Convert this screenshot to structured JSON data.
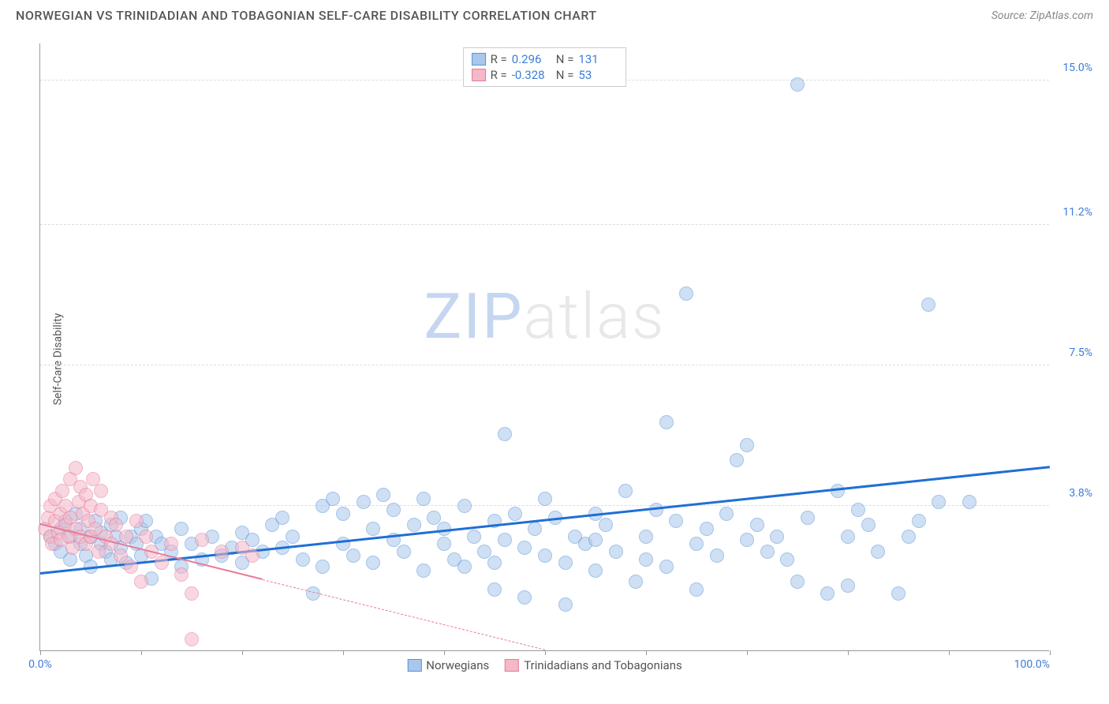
{
  "header": {
    "title": "NORWEGIAN VS TRINIDADIAN AND TOBAGONIAN SELF-CARE DISABILITY CORRELATION CHART",
    "source_prefix": "Source: ",
    "source": "ZipAtlas.com"
  },
  "chart": {
    "type": "scatter",
    "ylabel": "Self-Care Disability",
    "watermark_zip": "ZIP",
    "watermark_atlas": "atlas",
    "background_color": "#ffffff",
    "grid_color": "#dddddd",
    "axis_color": "#999999",
    "xlim": [
      0,
      100
    ],
    "ylim": [
      0,
      16
    ],
    "xticks": [
      0,
      10,
      20,
      30,
      40,
      50,
      60,
      70,
      80,
      90,
      100
    ],
    "xtick_labels": {
      "0": "0.0%",
      "100": "100.0%"
    },
    "yticks": [
      3.8,
      7.5,
      11.2,
      15.0
    ],
    "ytick_labels": [
      "3.8%",
      "7.5%",
      "11.2%",
      "15.0%"
    ],
    "series": [
      {
        "id": "norwegians",
        "name": "Norwegians",
        "fill_color": "#a9c7ec",
        "stroke_color": "#5b93d6",
        "trend_color": "#1f6fd4",
        "trend_width": 3,
        "trend_dash": "solid",
        "R": "0.296",
        "N": "131",
        "marker_radius": 9,
        "fill_opacity": 0.55,
        "trend": {
          "x1": 0,
          "y1": 2.0,
          "x2": 100,
          "y2": 4.8
        },
        "points": [
          [
            1,
            3.0
          ],
          [
            1.5,
            2.8
          ],
          [
            2,
            3.2
          ],
          [
            2,
            2.6
          ],
          [
            2.5,
            3.4
          ],
          [
            3,
            3.0
          ],
          [
            3,
            2.4
          ],
          [
            3.5,
            3.6
          ],
          [
            4,
            2.8
          ],
          [
            4,
            3.2
          ],
          [
            4.5,
            2.5
          ],
          [
            5,
            3.0
          ],
          [
            5,
            2.2
          ],
          [
            5.5,
            3.4
          ],
          [
            6,
            2.8
          ],
          [
            6,
            3.1
          ],
          [
            6.5,
            2.6
          ],
          [
            7,
            3.3
          ],
          [
            7,
            2.4
          ],
          [
            7.5,
            3.0
          ],
          [
            8,
            2.7
          ],
          [
            8,
            3.5
          ],
          [
            8.5,
            2.3
          ],
          [
            9,
            3.0
          ],
          [
            9.5,
            2.8
          ],
          [
            10,
            3.2
          ],
          [
            10,
            2.5
          ],
          [
            10.5,
            3.4
          ],
          [
            11,
            1.9
          ],
          [
            11.5,
            3.0
          ],
          [
            12,
            2.8
          ],
          [
            13,
            2.6
          ],
          [
            14,
            3.2
          ],
          [
            14,
            2.2
          ],
          [
            15,
            2.8
          ],
          [
            16,
            2.4
          ],
          [
            17,
            3.0
          ],
          [
            18,
            2.5
          ],
          [
            19,
            2.7
          ],
          [
            20,
            3.1
          ],
          [
            20,
            2.3
          ],
          [
            21,
            2.9
          ],
          [
            22,
            2.6
          ],
          [
            23,
            3.3
          ],
          [
            24,
            2.7
          ],
          [
            25,
            3.0
          ],
          [
            26,
            2.4
          ],
          [
            27,
            1.5
          ],
          [
            28,
            3.8
          ],
          [
            28,
            2.2
          ],
          [
            29,
            4.0
          ],
          [
            30,
            2.8
          ],
          [
            30,
            3.6
          ],
          [
            31,
            2.5
          ],
          [
            32,
            3.9
          ],
          [
            33,
            2.3
          ],
          [
            33,
            3.2
          ],
          [
            34,
            4.1
          ],
          [
            35,
            2.9
          ],
          [
            35,
            3.7
          ],
          [
            36,
            2.6
          ],
          [
            37,
            3.3
          ],
          [
            38,
            2.1
          ],
          [
            38,
            4.0
          ],
          [
            39,
            3.5
          ],
          [
            40,
            2.8
          ],
          [
            40,
            3.2
          ],
          [
            41,
            2.4
          ],
          [
            42,
            3.8
          ],
          [
            42,
            2.2
          ],
          [
            43,
            3.0
          ],
          [
            44,
            2.6
          ],
          [
            45,
            3.4
          ],
          [
            45,
            1.6
          ],
          [
            46,
            5.7
          ],
          [
            46,
            2.9
          ],
          [
            47,
            3.6
          ],
          [
            48,
            2.7
          ],
          [
            48,
            1.4
          ],
          [
            49,
            3.2
          ],
          [
            50,
            4.0
          ],
          [
            50,
            2.5
          ],
          [
            51,
            3.5
          ],
          [
            52,
            2.3
          ],
          [
            52,
            1.2
          ],
          [
            53,
            3.0
          ],
          [
            54,
            2.8
          ],
          [
            55,
            3.6
          ],
          [
            55,
            2.1
          ],
          [
            56,
            3.3
          ],
          [
            57,
            2.6
          ],
          [
            58,
            4.2
          ],
          [
            59,
            1.8
          ],
          [
            60,
            3.0
          ],
          [
            60,
            2.4
          ],
          [
            61,
            3.7
          ],
          [
            62,
            6.0
          ],
          [
            62,
            2.2
          ],
          [
            63,
            3.4
          ],
          [
            64,
            9.4
          ],
          [
            65,
            2.8
          ],
          [
            65,
            1.6
          ],
          [
            66,
            3.2
          ],
          [
            67,
            2.5
          ],
          [
            68,
            3.6
          ],
          [
            69,
            5.0
          ],
          [
            70,
            2.9
          ],
          [
            70,
            5.4
          ],
          [
            71,
            3.3
          ],
          [
            72,
            2.6
          ],
          [
            73,
            3.0
          ],
          [
            74,
            2.4
          ],
          [
            75,
            1.8
          ],
          [
            76,
            3.5
          ],
          [
            78,
            1.5
          ],
          [
            79,
            4.2
          ],
          [
            80,
            3.0
          ],
          [
            80,
            1.7
          ],
          [
            81,
            3.7
          ],
          [
            82,
            3.3
          ],
          [
            83,
            2.6
          ],
          [
            85,
            1.5
          ],
          [
            86,
            3.0
          ],
          [
            87,
            3.4
          ],
          [
            88,
            9.1
          ],
          [
            89,
            3.9
          ],
          [
            92,
            3.9
          ],
          [
            75,
            14.9
          ],
          [
            55,
            2.9
          ],
          [
            24,
            3.5
          ],
          [
            45,
            2.3
          ]
        ]
      },
      {
        "id": "trinidadians",
        "name": "Trinidadians and Tobagonians",
        "fill_color": "#f5b8c8",
        "stroke_color": "#e77a9a",
        "trend_color": "#e77a9a",
        "trend_width": 2,
        "trend_dash": "solid_then_dash",
        "R": "-0.328",
        "N": "53",
        "marker_radius": 9,
        "fill_opacity": 0.55,
        "trend": {
          "x1": 0,
          "y1": 3.3,
          "x2": 50,
          "y2": 0.0
        },
        "trend_solid_end_x": 22,
        "points": [
          [
            0.5,
            3.2
          ],
          [
            0.8,
            3.5
          ],
          [
            1,
            3.0
          ],
          [
            1,
            3.8
          ],
          [
            1.2,
            2.8
          ],
          [
            1.5,
            3.4
          ],
          [
            1.5,
            4.0
          ],
          [
            1.8,
            3.1
          ],
          [
            2,
            3.6
          ],
          [
            2,
            2.9
          ],
          [
            2.2,
            4.2
          ],
          [
            2.5,
            3.3
          ],
          [
            2.5,
            3.8
          ],
          [
            2.8,
            3.0
          ],
          [
            3,
            4.5
          ],
          [
            3,
            3.5
          ],
          [
            3.2,
            2.7
          ],
          [
            3.5,
            4.8
          ],
          [
            3.5,
            3.2
          ],
          [
            3.8,
            3.9
          ],
          [
            4,
            3.0
          ],
          [
            4,
            4.3
          ],
          [
            4.2,
            3.6
          ],
          [
            4.5,
            2.8
          ],
          [
            4.5,
            4.1
          ],
          [
            4.8,
            3.4
          ],
          [
            5,
            3.8
          ],
          [
            5,
            3.0
          ],
          [
            5.2,
            4.5
          ],
          [
            5.5,
            3.2
          ],
          [
            5.8,
            2.6
          ],
          [
            6,
            3.7
          ],
          [
            6,
            4.2
          ],
          [
            6.5,
            3.0
          ],
          [
            7,
            3.5
          ],
          [
            7,
            2.8
          ],
          [
            7.5,
            3.3
          ],
          [
            8,
            2.5
          ],
          [
            8.5,
            3.0
          ],
          [
            9,
            2.2
          ],
          [
            9.5,
            3.4
          ],
          [
            10,
            1.8
          ],
          [
            10.5,
            3.0
          ],
          [
            11,
            2.6
          ],
          [
            12,
            2.3
          ],
          [
            13,
            2.8
          ],
          [
            14,
            2.0
          ],
          [
            15,
            1.5
          ],
          [
            16,
            2.9
          ],
          [
            18,
            2.6
          ],
          [
            20,
            2.7
          ],
          [
            21,
            2.5
          ],
          [
            15,
            0.3
          ]
        ]
      }
    ]
  }
}
